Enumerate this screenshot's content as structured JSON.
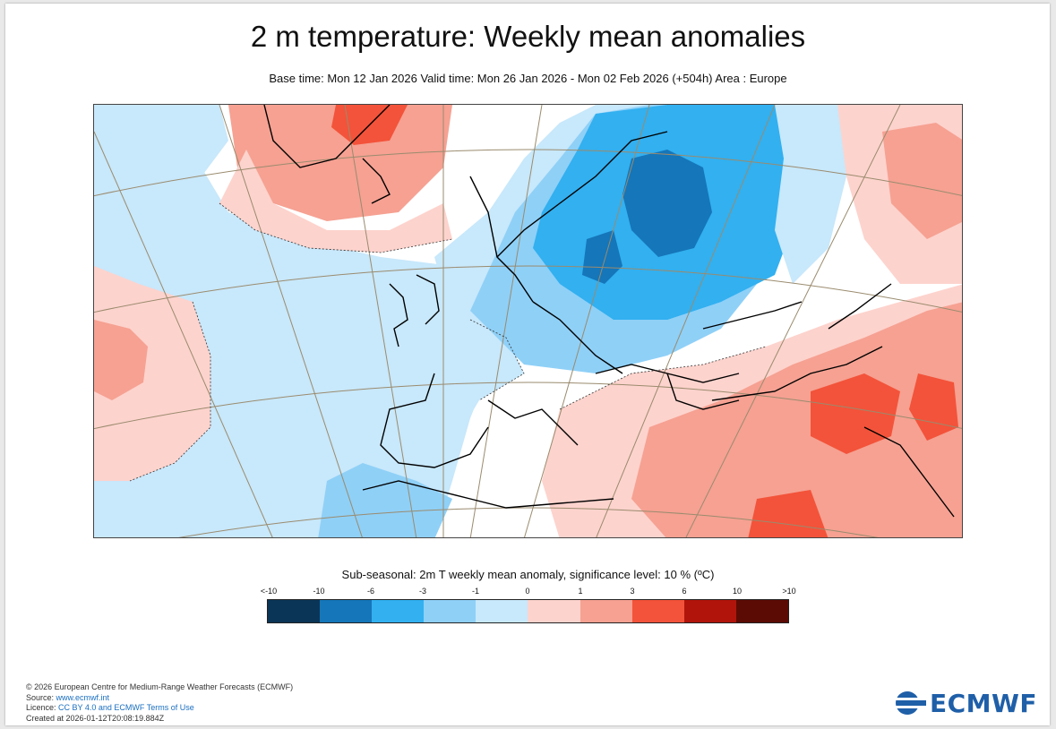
{
  "header": {
    "title": "2 m temperature: Weekly mean anomalies",
    "subtitle": "Base time: Mon 12 Jan 2026 Valid time: Mon 26 Jan 2026 - Mon 02 Feb 2026 (+504h) Area : Europe"
  },
  "legend": {
    "title": "Sub-seasonal: 2m T weekly mean anomaly, significance level: 10 % (ºC)",
    "ticks": [
      "<-10",
      "-10",
      "-6",
      "-3",
      "-1",
      "0",
      "1",
      "3",
      "6",
      "10",
      ">10"
    ],
    "colors": [
      "#0b3556",
      "#1576b9",
      "#32b0f0",
      "#8fd0f7",
      "#c8e8fb",
      "#fdd3cd",
      "#f6a192",
      "#f3533a",
      "#b1140b",
      "#5b0b04"
    ]
  },
  "credits": {
    "line1": "© 2026 European Centre for Medium-Range Weather Forecasts (ECMWF)",
    "source_label": "Source: ",
    "source_link": "www.ecmwf.int",
    "licence_label": "Licence: ",
    "licence_link": "CC BY 4.0 and ECMWF Terms of Use",
    "created": "Created at 2026-01-12T20:08:19.884Z"
  },
  "logo": {
    "text": "ECMWF",
    "icon": "ecmwf-logo-icon"
  }
}
